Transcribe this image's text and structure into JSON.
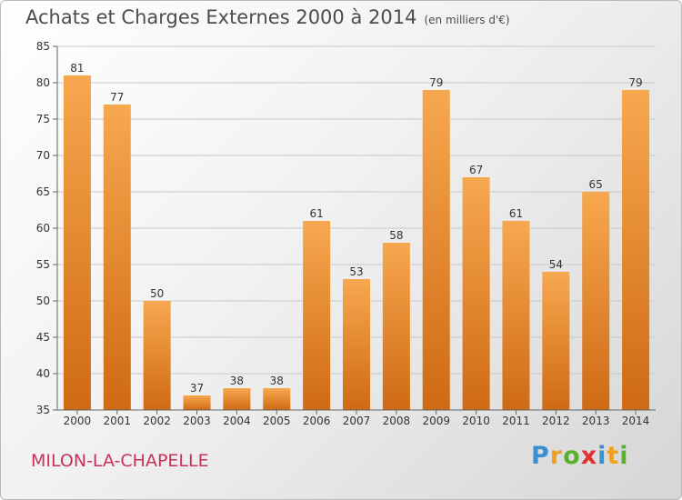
{
  "title": "Achats et Charges Externes 2000 à 2014",
  "subtitle": "(en milliers d'€)",
  "commune": "MILON-LA-CHAPELLE",
  "logo": {
    "letters": [
      {
        "ch": "P",
        "color": "#3a8fd0"
      },
      {
        "ch": "r",
        "color": "#f0a020"
      },
      {
        "ch": "o",
        "color": "#5cb030"
      },
      {
        "ch": "x",
        "color": "#e03030"
      },
      {
        "ch": "i",
        "color": "#3a8fd0"
      },
      {
        "ch": "t",
        "color": "#f0a020"
      },
      {
        "ch": "i",
        "color": "#5cb030"
      }
    ]
  },
  "colors": {
    "bar_top": "#f7a84f",
    "bar_bottom": "#cf6a14",
    "grid": "#c8c8c8",
    "axis": "#666666"
  },
  "chart_data": {
    "type": "bar",
    "title": "Achats et Charges Externes 2000 à 2014",
    "subtitle": "(en milliers d'€)",
    "xlabel": "",
    "ylabel": "",
    "categories": [
      "2000",
      "2001",
      "2002",
      "2003",
      "2004",
      "2005",
      "2006",
      "2007",
      "2008",
      "2009",
      "2010",
      "2011",
      "2012",
      "2013",
      "2014"
    ],
    "values": [
      81,
      77,
      50,
      37,
      38,
      38,
      61,
      53,
      58,
      79,
      67,
      61,
      54,
      65,
      79
    ],
    "ylim": [
      35,
      85
    ],
    "yticks": [
      35,
      40,
      45,
      50,
      55,
      60,
      65,
      70,
      75,
      80,
      85
    ],
    "grid": true,
    "data_labels": true
  }
}
